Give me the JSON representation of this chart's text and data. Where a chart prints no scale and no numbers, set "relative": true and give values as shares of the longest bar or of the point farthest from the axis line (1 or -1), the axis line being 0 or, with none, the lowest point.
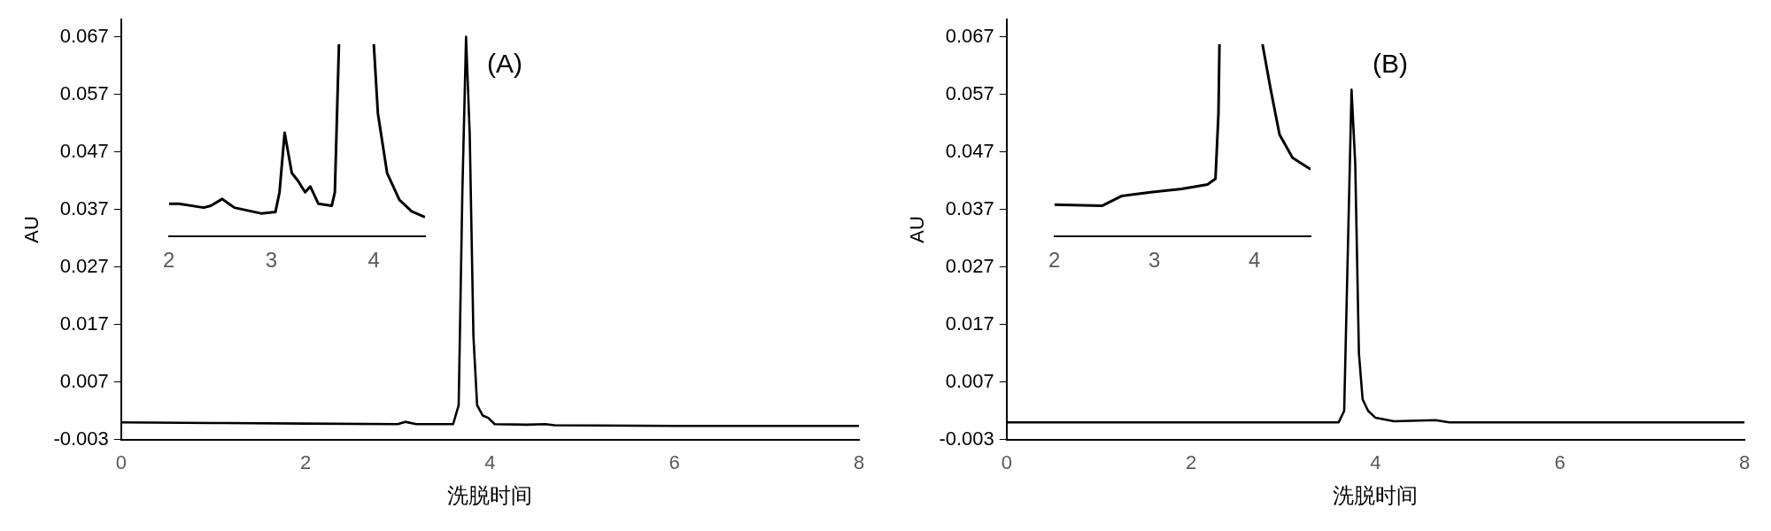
{
  "chart_data": [
    {
      "type": "line",
      "title": "(A)",
      "xlabel": "洗脱时间",
      "ylabel": "AU",
      "color": "#000000",
      "x": [
        0,
        1,
        2,
        3,
        3.08,
        3.2,
        3.6,
        3.66,
        3.7,
        3.74,
        3.78,
        3.82,
        3.86,
        3.92,
        3.98,
        4.05,
        4.4,
        4.6,
        4.7,
        6,
        8
      ],
      "values": [
        0.0,
        -0.0001,
        -0.0002,
        -0.0003,
        0.0001,
        -0.0003,
        -0.0003,
        0.003,
        0.04,
        0.067,
        0.05,
        0.015,
        0.003,
        0.0012,
        0.0008,
        -0.0003,
        -0.0004,
        -0.0003,
        -0.0005,
        -0.0006,
        -0.0006
      ],
      "xlim": [
        0,
        8
      ],
      "xticks": [
        0,
        2,
        4,
        6,
        8
      ],
      "ylim": [
        -0.003,
        0.07
      ],
      "yticks": [
        -0.003,
        0.007,
        0.017,
        0.027,
        0.037,
        0.047,
        0.057,
        0.067
      ],
      "grid": false,
      "legend": false
    },
    {
      "type": "line",
      "relative": true,
      "color": "#000000",
      "x": [
        2.0,
        2.1,
        2.34,
        2.41,
        2.52,
        2.64,
        2.9,
        3.04,
        3.08,
        3.13,
        3.2,
        3.26,
        3.33,
        3.38,
        3.46,
        3.59,
        3.62,
        3.66,
        3.8,
        4.0,
        4.04,
        4.13,
        4.25,
        4.37,
        4.5
      ],
      "values": [
        0.17,
        0.17,
        0.15,
        0.16,
        0.195,
        0.15,
        0.12,
        0.127,
        0.23,
        0.54,
        0.33,
        0.29,
        0.23,
        0.26,
        0.17,
        0.16,
        0.23,
        1.0,
        null,
        1.0,
        0.64,
        0.33,
        0.19,
        0.13,
        0.1
      ],
      "xlim": [
        2,
        4.5
      ],
      "xticks": [
        2,
        3,
        4
      ],
      "grid": false,
      "legend": false
    },
    {
      "type": "line",
      "title": "(B)",
      "xlabel": "洗脱时间",
      "ylabel": "AU",
      "color": "#000000",
      "x": [
        0,
        2,
        3.6,
        3.66,
        3.7,
        3.74,
        3.78,
        3.82,
        3.86,
        3.92,
        4.0,
        4.2,
        4.65,
        4.8,
        8
      ],
      "values": [
        0.0,
        0.0,
        0.0,
        0.002,
        0.03,
        0.0578,
        0.045,
        0.012,
        0.004,
        0.002,
        0.0008,
        0.0002,
        0.0004,
        0.0,
        0.0
      ],
      "xlim": [
        0,
        8
      ],
      "xticks": [
        0,
        2,
        4,
        6,
        8
      ],
      "ylim": [
        -0.003,
        0.07
      ],
      "yticks": [
        -0.003,
        0.007,
        0.017,
        0.027,
        0.037,
        0.047,
        0.057,
        0.067
      ],
      "grid": false,
      "legend": false
    },
    {
      "type": "line",
      "relative": true,
      "color": "#000000",
      "x": [
        2.0,
        2.48,
        2.67,
        2.96,
        3.27,
        3.53,
        3.61,
        3.64,
        3.65,
        3.9,
        4.08,
        4.16,
        4.25,
        4.38,
        4.56
      ],
      "values": [
        0.166,
        0.16,
        0.21,
        0.23,
        0.247,
        0.27,
        0.3,
        0.64,
        1.0,
        null,
        1.0,
        0.77,
        0.53,
        0.41,
        0.35
      ],
      "xlim": [
        2,
        4.56
      ],
      "xticks": [
        2,
        3,
        4
      ],
      "grid": false,
      "legend": false
    }
  ]
}
